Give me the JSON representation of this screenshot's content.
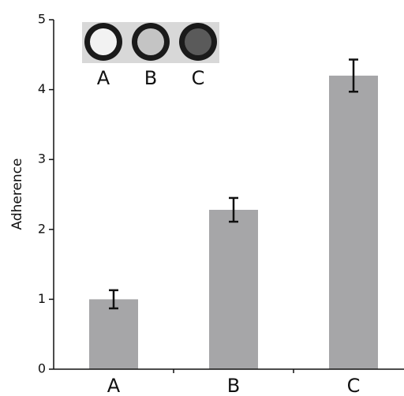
{
  "chart_data": {
    "type": "bar",
    "y_label": "Adherence",
    "categories": [
      "A",
      "B",
      "C"
    ],
    "values": [
      1.0,
      2.28,
      4.2
    ],
    "errors": [
      0.13,
      0.17,
      0.23
    ],
    "color": "#a6a6a8",
    "ylim": [
      0,
      5
    ],
    "yticks": [
      0,
      1,
      2,
      3,
      4,
      5
    ],
    "inset_labels": [
      "A",
      "B",
      "C"
    ]
  }
}
